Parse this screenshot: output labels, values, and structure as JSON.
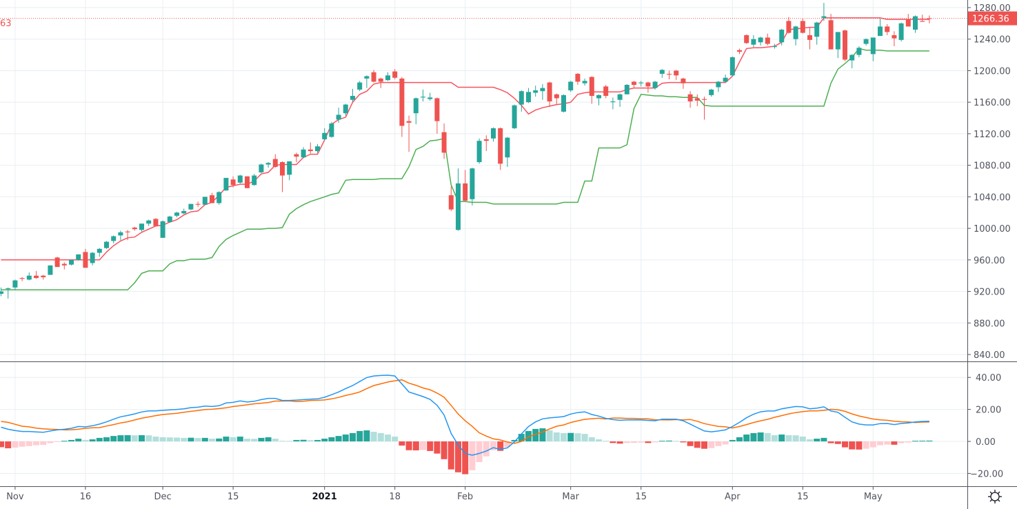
{
  "chart_data": {
    "type": "candlestick",
    "price_axis": {
      "ticks": [
        "840.00",
        "880.00",
        "920.00",
        "960.00",
        "1000.00",
        "1040.00",
        "1080.00",
        "1120.00",
        "1160.00",
        "1200.00",
        "1240.00",
        "1280.00"
      ],
      "range": [
        833,
        1290
      ]
    },
    "last_price": "1266.36",
    "left_cut_label": "63",
    "time_axis": [
      {
        "label": "Nov",
        "bar": 2,
        "bold": false
      },
      {
        "label": "16",
        "bar": 12,
        "bold": false
      },
      {
        "label": "Dec",
        "bar": 23,
        "bold": false
      },
      {
        "label": "15",
        "bar": 33,
        "bold": false
      },
      {
        "label": "2021",
        "bar": 46,
        "bold": true
      },
      {
        "label": "18",
        "bar": 56,
        "bold": false
      },
      {
        "label": "Feb",
        "bar": 66,
        "bold": false
      },
      {
        "label": "Mar",
        "bar": 81,
        "bold": false
      },
      {
        "label": "15",
        "bar": 91,
        "bold": false
      },
      {
        "label": "Apr",
        "bar": 104,
        "bold": false
      },
      {
        "label": "15",
        "bar": 114,
        "bold": false
      },
      {
        "label": "May",
        "bar": 124,
        "bold": false
      }
    ],
    "ohlc_format": [
      "open",
      "high",
      "low",
      "close"
    ],
    "ohlc": [
      [
        917,
        925,
        914,
        920
      ],
      [
        923,
        925,
        911,
        924
      ],
      [
        925,
        935,
        922,
        934
      ],
      [
        937,
        938,
        933,
        936
      ],
      [
        935,
        944,
        934,
        940
      ],
      [
        940,
        946,
        936,
        937
      ],
      [
        940,
        941,
        935,
        938
      ],
      [
        941,
        953,
        941,
        953
      ],
      [
        963,
        964,
        951,
        951
      ],
      [
        955,
        957,
        948,
        953
      ],
      [
        954,
        960,
        953,
        960
      ],
      [
        960,
        967,
        959,
        967
      ],
      [
        970,
        974,
        950,
        950
      ],
      [
        956,
        970,
        953,
        969
      ],
      [
        969,
        975,
        964,
        974
      ],
      [
        975,
        984,
        974,
        983
      ],
      [
        984,
        991,
        981,
        990
      ],
      [
        991,
        997,
        985,
        995
      ],
      [
        996,
        998,
        985,
        995
      ],
      [
        1001,
        1002,
        997,
        999
      ],
      [
        998,
        1006,
        996,
        1006
      ],
      [
        1006,
        1011,
        1003,
        1010
      ],
      [
        1012,
        1013,
        1003,
        1003
      ],
      [
        988,
        1010,
        988,
        1009
      ],
      [
        1008,
        1016,
        1007,
        1015
      ],
      [
        1016,
        1021,
        1014,
        1020
      ],
      [
        1019,
        1025,
        1018,
        1022
      ],
      [
        1024,
        1031,
        1023,
        1031
      ],
      [
        1031,
        1034,
        1027,
        1030
      ],
      [
        1030,
        1040,
        1030,
        1040
      ],
      [
        1042,
        1045,
        1032,
        1032
      ],
      [
        1032,
        1047,
        1030,
        1046
      ],
      [
        1048,
        1064,
        1048,
        1064
      ],
      [
        1062,
        1066,
        1052,
        1055
      ],
      [
        1058,
        1068,
        1057,
        1067
      ],
      [
        1066,
        1066,
        1051,
        1051
      ],
      [
        1055,
        1069,
        1054,
        1067
      ],
      [
        1071,
        1082,
        1070,
        1081
      ],
      [
        1081,
        1084,
        1077,
        1083
      ],
      [
        1088,
        1094,
        1077,
        1078
      ],
      [
        1084,
        1085,
        1046,
        1067
      ],
      [
        1068,
        1085,
        1061,
        1085
      ],
      [
        1094,
        1096,
        1084,
        1091
      ],
      [
        1090,
        1103,
        1089,
        1100
      ],
      [
        1100,
        1109,
        1095,
        1098
      ],
      [
        1098,
        1107,
        1096,
        1104
      ],
      [
        1113,
        1127,
        1112,
        1121
      ],
      [
        1116,
        1135,
        1115,
        1133
      ],
      [
        1138,
        1153,
        1134,
        1144
      ],
      [
        1146,
        1158,
        1143,
        1157
      ],
      [
        1163,
        1177,
        1160,
        1168
      ],
      [
        1176,
        1187,
        1174,
        1185
      ],
      [
        1190,
        1194,
        1178,
        1193
      ],
      [
        1198,
        1201,
        1185,
        1186
      ],
      [
        1190,
        1191,
        1178,
        1186
      ],
      [
        1188,
        1198,
        1187,
        1194
      ],
      [
        1199,
        1202,
        1189,
        1191
      ],
      [
        1190,
        1192,
        1116,
        1130
      ],
      [
        1136,
        1143,
        1097,
        1134
      ],
      [
        1146,
        1166,
        1132,
        1165
      ],
      [
        1166,
        1176,
        1161,
        1167
      ],
      [
        1164,
        1172,
        1162,
        1166
      ],
      [
        1165,
        1166,
        1120,
        1136
      ],
      [
        1122,
        1133,
        1088,
        1096
      ],
      [
        1042,
        1053,
        1022,
        1024
      ],
      [
        998,
        1076,
        997,
        1057
      ],
      [
        1057,
        1074,
        1034,
        1035
      ],
      [
        1037,
        1077,
        1029,
        1076
      ],
      [
        1084,
        1114,
        1082,
        1111
      ],
      [
        1113,
        1118,
        1098,
        1111
      ],
      [
        1114,
        1128,
        1110,
        1127
      ],
      [
        1127,
        1128,
        1074,
        1082
      ],
      [
        1090,
        1116,
        1078,
        1115
      ],
      [
        1127,
        1157,
        1126,
        1156
      ],
      [
        1157,
        1175,
        1148,
        1174
      ],
      [
        1160,
        1178,
        1159,
        1173
      ],
      [
        1172,
        1181,
        1167,
        1175
      ],
      [
        1174,
        1183,
        1163,
        1178
      ],
      [
        1185,
        1186,
        1154,
        1161
      ],
      [
        1170,
        1171,
        1157,
        1165
      ],
      [
        1148,
        1170,
        1147,
        1169
      ],
      [
        1175,
        1187,
        1173,
        1186
      ],
      [
        1196,
        1197,
        1182,
        1186
      ],
      [
        1184,
        1190,
        1181,
        1187
      ],
      [
        1192,
        1193,
        1158,
        1168
      ],
      [
        1165,
        1170,
        1156,
        1169
      ],
      [
        1180,
        1182,
        1165,
        1168
      ],
      [
        1160,
        1166,
        1151,
        1161
      ],
      [
        1163,
        1171,
        1154,
        1170
      ],
      [
        1170,
        1183,
        1170,
        1182
      ],
      [
        1186,
        1187,
        1178,
        1182
      ],
      [
        1184,
        1187,
        1180,
        1185
      ],
      [
        1185,
        1186,
        1172,
        1180
      ],
      [
        1178,
        1187,
        1176,
        1186
      ],
      [
        1196,
        1202,
        1191,
        1201
      ],
      [
        1196,
        1200,
        1189,
        1195
      ],
      [
        1200,
        1201,
        1188,
        1194
      ],
      [
        1190,
        1191,
        1177,
        1184
      ],
      [
        1170,
        1174,
        1153,
        1161
      ],
      [
        1165,
        1170,
        1155,
        1162
      ],
      [
        1164,
        1167,
        1138,
        1163
      ],
      [
        1169,
        1177,
        1167,
        1176
      ],
      [
        1179,
        1187,
        1173,
        1186
      ],
      [
        1186,
        1195,
        1185,
        1191
      ],
      [
        1194,
        1218,
        1193,
        1217
      ],
      [
        1226,
        1228,
        1221,
        1224
      ],
      [
        1245,
        1246,
        1234,
        1235
      ],
      [
        1233,
        1245,
        1230,
        1240
      ],
      [
        1236,
        1243,
        1232,
        1242
      ],
      [
        1242,
        1247,
        1232,
        1234
      ],
      [
        1230,
        1234,
        1228,
        1231
      ],
      [
        1236,
        1253,
        1232,
        1252
      ],
      [
        1263,
        1268,
        1247,
        1248
      ],
      [
        1240,
        1257,
        1232,
        1256
      ],
      [
        1263,
        1266,
        1247,
        1248
      ],
      [
        1245,
        1255,
        1227,
        1239
      ],
      [
        1243,
        1262,
        1233,
        1261
      ],
      [
        1267,
        1286,
        1263,
        1269
      ],
      [
        1264,
        1272,
        1227,
        1227
      ],
      [
        1227,
        1249,
        1216,
        1249
      ],
      [
        1251,
        1252,
        1212,
        1214
      ],
      [
        1213,
        1221,
        1203,
        1220
      ],
      [
        1220,
        1231,
        1217,
        1229
      ],
      [
        1234,
        1241,
        1232,
        1240
      ],
      [
        1221,
        1242,
        1212,
        1242
      ],
      [
        1244,
        1266,
        1244,
        1256
      ],
      [
        1256,
        1259,
        1245,
        1249
      ],
      [
        1245,
        1250,
        1231,
        1241
      ],
      [
        1239,
        1261,
        1237,
        1260
      ],
      [
        1265,
        1272,
        1256,
        1256
      ],
      [
        1252,
        1270,
        1248,
        1269
      ],
      [
        1263,
        1271,
        1262,
        1262
      ],
      [
        1266.5,
        1270,
        1260,
        1266.36
      ]
    ],
    "upper_stop_line": [
      960,
      960,
      960,
      960,
      960,
      960,
      960,
      960,
      960,
      960,
      960,
      960,
      960,
      960,
      960,
      970,
      978,
      984,
      988,
      989,
      995,
      999,
      1003,
      1004,
      1008,
      1011,
      1017,
      1021,
      1022,
      1030,
      1033,
      1042,
      1052,
      1054,
      1056,
      1056,
      1060,
      1069,
      1071,
      1080,
      1081,
      1081,
      1081,
      1090,
      1094,
      1094,
      1112,
      1132,
      1138,
      1141,
      1160,
      1170,
      1174,
      1183,
      1185,
      1185,
      1185,
      1185,
      1185,
      1185,
      1185,
      1185,
      1185,
      1185,
      1185,
      1179,
      1179,
      1179,
      1179,
      1179,
      1179,
      1176,
      1172,
      1165,
      1156,
      1145,
      1150,
      1153,
      1155,
      1157,
      1158,
      1160,
      1170,
      1172,
      1173,
      1173,
      1173,
      1173,
      1173,
      1176,
      1178,
      1178,
      1178,
      1178,
      1184,
      1185,
      1185,
      1185,
      1185,
      1185,
      1185,
      1185,
      1185,
      1185,
      1193,
      1211,
      1228,
      1229,
      1229,
      1230,
      1231,
      1236,
      1252,
      1253,
      1254,
      1255,
      1255,
      1267,
      1267,
      1267,
      1267,
      1267,
      1267,
      1267,
      1267,
      1267,
      1265,
      1265,
      1265,
      1265,
      1265,
      1265,
      1265
    ],
    "lower_stop_line": [
      922,
      922,
      922,
      922,
      922,
      922,
      922,
      922,
      922,
      922,
      922,
      922,
      922,
      922,
      922,
      922,
      922,
      922,
      922,
      931,
      943,
      946,
      946,
      946,
      955,
      959,
      959,
      961,
      961,
      961,
      963,
      977,
      986,
      991,
      995,
      999,
      999,
      999,
      1000,
      1000,
      1001,
      1018,
      1025,
      1030,
      1034,
      1037,
      1040,
      1043,
      1045,
      1061,
      1062,
      1062,
      1062,
      1062,
      1063,
      1063,
      1063,
      1063,
      1078,
      1100,
      1104,
      1111,
      1112,
      1114,
      1055,
      1034,
      1034,
      1033,
      1033,
      1033,
      1031,
      1031,
      1031,
      1031,
      1031,
      1031,
      1031,
      1031,
      1031,
      1031,
      1033,
      1033,
      1033,
      1060,
      1060,
      1102,
      1102,
      1102,
      1102,
      1106,
      1152,
      1170,
      1169,
      1168,
      1168,
      1167,
      1167,
      1166,
      1166,
      1166,
      1156,
      1155,
      1155,
      1155,
      1155,
      1155,
      1155,
      1155,
      1155,
      1155,
      1155,
      1155,
      1155,
      1155,
      1155,
      1155,
      1155,
      1155,
      1184,
      1202,
      1209,
      1217,
      1228,
      1226,
      1226,
      1226,
      1225,
      1225,
      1225,
      1225,
      1225,
      1225,
      1225
    ],
    "macd": {
      "axis_ticks": [
        "40.00",
        "20.00",
        "0.00",
        "−20.00"
      ],
      "range": [
        -27,
        47
      ],
      "macd_line": [
        8.9,
        7.6,
        6.8,
        6.2,
        6.2,
        5.9,
        5.7,
        6.5,
        7.2,
        7.6,
        8.2,
        9.3,
        9.1,
        9.8,
        10.8,
        12.2,
        13.9,
        15.4,
        16.2,
        17.2,
        18.4,
        19.1,
        19.1,
        19.4,
        19.7,
        20.0,
        20.4,
        21.1,
        21.4,
        22.1,
        21.8,
        22.3,
        24.0,
        24.4,
        25.3,
        24.6,
        25.1,
        26.1,
        26.9,
        26.9,
        25.6,
        25.6,
        25.8,
        26.1,
        26.4,
        26.6,
        27.6,
        29.2,
        30.9,
        33.0,
        34.9,
        37.4,
        39.9,
        40.9,
        41.2,
        41.4,
        40.9,
        35.9,
        30.9,
        29.5,
        28.0,
        26.3,
        22.6,
        16.5,
        5.0,
        -2.2,
        -7.6,
        -8.6,
        -7.5,
        -6.0,
        -3.9,
        -5.0,
        -4.0,
        -0.3,
        4.7,
        9.3,
        12.2,
        14.1,
        14.7,
        15.1,
        15.5,
        17.1,
        18.0,
        18.5,
        16.8,
        15.8,
        14.4,
        13.6,
        13.2,
        13.4,
        13.5,
        13.4,
        13.1,
        12.9,
        13.9,
        13.9,
        13.9,
        12.9,
        10.8,
        8.6,
        6.5,
        6.0,
        6.5,
        7.2,
        9.3,
        11.9,
        14.8,
        17.0,
        18.5,
        19.0,
        19.0,
        20.4,
        21.1,
        21.8,
        21.6,
        20.4,
        20.8,
        21.6,
        19.0,
        18.2,
        15.1,
        12.2,
        10.8,
        10.3,
        10.3,
        11.1,
        11.2,
        10.5,
        11.2,
        11.5,
        12.2,
        12.5,
        12.6
      ],
      "histogram": [
        -3.6,
        -4.3,
        -3.9,
        -3.3,
        -2.9,
        -2.4,
        -2.2,
        -1.1,
        -0.3,
        0.4,
        0.9,
        1.7,
        0.9,
        1.3,
        2.2,
        2.6,
        3.4,
        3.85,
        3.9,
        3.8,
        3.9,
        3.8,
        3.0,
        2.6,
        2.5,
        2.4,
        2.2,
        2.3,
        2.1,
        2.2,
        1.7,
        1.8,
        3.0,
        2.6,
        3.0,
        1.7,
        1.6,
        2.2,
        2.6,
        1.7,
        0.4,
        0.3,
        0.9,
        1.0,
        0.8,
        0.9,
        1.7,
        2.6,
        3.4,
        4.3,
        5.2,
        6.5,
        6.9,
        6.0,
        5.2,
        4.3,
        3.0,
        -2.6,
        -5.5,
        -5.6,
        -5.4,
        -6.0,
        -7.6,
        -11.1,
        -17.5,
        -19.3,
        -20.5,
        -18.0,
        -12.9,
        -9.3,
        -5.5,
        -5.9,
        -3.6,
        0.9,
        4.7,
        6.5,
        7.8,
        8.2,
        6.9,
        5.6,
        5.2,
        5.3,
        5.1,
        4.7,
        2.6,
        1.3,
        0.4,
        -1.0,
        -1.4,
        -1.0,
        -0.9,
        -0.7,
        -1.0,
        -0.6,
        0.4,
        0.5,
        0.3,
        -0.6,
        -2.9,
        -4.0,
        -4.6,
        -4.2,
        -2.9,
        -1.9,
        0.9,
        2.6,
        4.3,
        5.2,
        5.6,
        5.2,
        3.9,
        4.3,
        3.9,
        3.8,
        3.0,
        1.3,
        1.7,
        2.2,
        -1.1,
        -1.6,
        -3.7,
        -5.0,
        -5.1,
        -4.6,
        -3.7,
        -2.4,
        -2.0,
        -2.1,
        -1.1,
        -0.7,
        0.4,
        0.45,
        0.5
      ]
    },
    "grid": true,
    "colors": {
      "up": "#26a69a",
      "down": "#ef5350",
      "upper_stop": "#f7525f",
      "lower_stop": "#4caf50",
      "macd_line": "#2196f3",
      "signal_line": "#ff6d00",
      "hist_up_rising": "#26a69a",
      "hist_up_falling": "#b2dfdb",
      "hist_down_falling": "#ef5350",
      "hist_down_rising": "#ffcdd2",
      "grid": "#e8eef3",
      "last_price_bg": "#ef5350"
    }
  },
  "settings_icon": "gear-icon"
}
